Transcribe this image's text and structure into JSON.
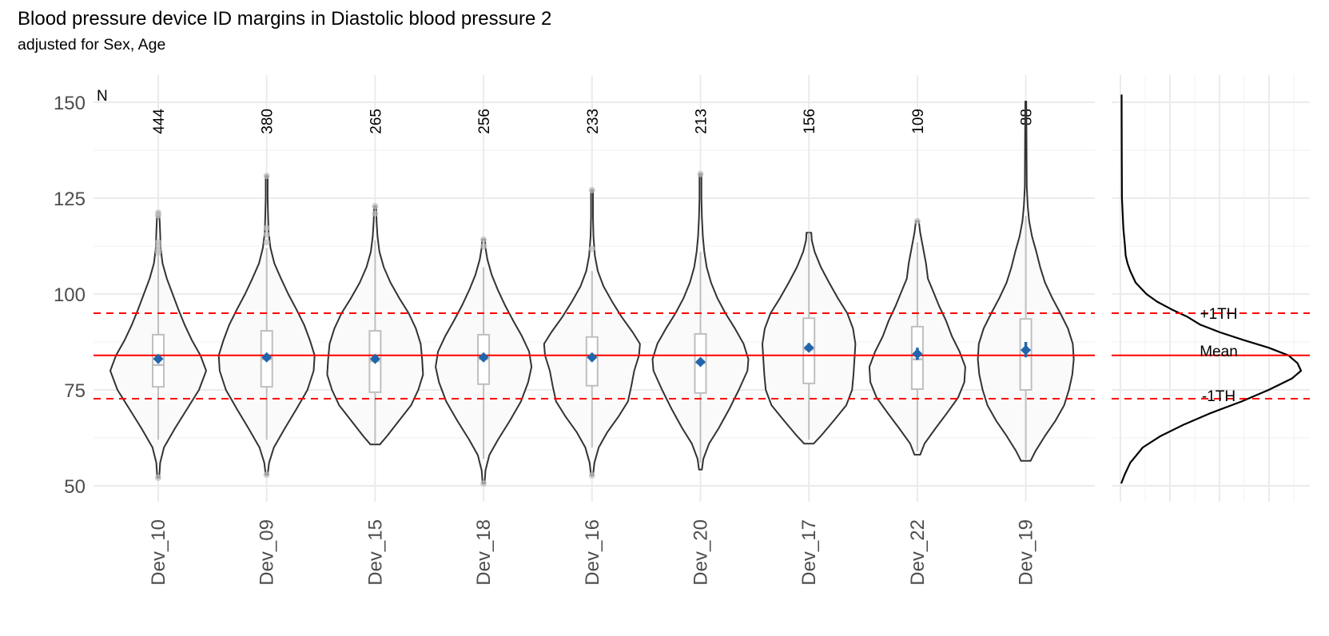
{
  "chart_data": {
    "type": "violin",
    "title": "Blood pressure device ID margins in Diastolic blood pressure 2",
    "subtitle": "adjusted for Sex, Age",
    "xlabel": "",
    "ylabel": "",
    "ylim": [
      46,
      156
    ],
    "yticks": [
      50,
      75,
      100,
      125,
      150
    ],
    "grid": true,
    "n_header": "N",
    "reference_lines": {
      "mean": {
        "label": "Mean",
        "value": 84.0,
        "color": "#ff0000",
        "style": "solid"
      },
      "plus_1th": {
        "label": "+1TH",
        "value": 95.0,
        "color": "#ff0000",
        "style": "dashed"
      },
      "minus_1th": {
        "label": "-1TH",
        "value": 72.7,
        "color": "#ff0000",
        "style": "dashed"
      }
    },
    "colors": {
      "violin_outline": "#333333",
      "violin_fill": "#fafafa",
      "box": "#bfbfbf",
      "mean_marker": "#2166ac",
      "outlier": "#bdbdbd"
    },
    "categories": [
      "Dev_10",
      "Dev_09",
      "Dev_15",
      "Dev_18",
      "Dev_16",
      "Dev_20",
      "Dev_17",
      "Dev_22",
      "Dev_19"
    ],
    "series": [
      {
        "name": "Dev_10",
        "n": "444",
        "min": 52.1,
        "max": 121.2,
        "q1": 75.8,
        "median": 81.5,
        "q3": 89.4,
        "whisker_low": 62,
        "whisker_high": 111,
        "mean": 83.1,
        "ci": [
          82.5,
          83.8
        ],
        "outliers": [
          121.2,
          120.5,
          113.5,
          112.5,
          111.5,
          110.8,
          52.1
        ],
        "profile": [
          [
            52.1,
            0.02
          ],
          [
            56,
            0.04
          ],
          [
            60,
            0.12
          ],
          [
            65,
            0.35
          ],
          [
            70,
            0.6
          ],
          [
            75,
            0.85
          ],
          [
            80,
            1.0
          ],
          [
            84,
            0.88
          ],
          [
            88,
            0.7
          ],
          [
            92,
            0.55
          ],
          [
            96,
            0.42
          ],
          [
            100,
            0.3
          ],
          [
            104,
            0.18
          ],
          [
            108,
            0.09
          ],
          [
            112,
            0.05
          ],
          [
            116,
            0.04
          ],
          [
            119,
            0.03
          ],
          [
            121.2,
            0.02
          ]
        ]
      },
      {
        "name": "Dev_09",
        "n": "380",
        "min": 52.9,
        "max": 130.8,
        "q1": 75.8,
        "median": 83.0,
        "q3": 90.4,
        "whisker_low": 62,
        "whisker_high": 112,
        "mean": 83.5,
        "ci": [
          83.0,
          84.0
        ],
        "outliers": [
          130.8,
          117.2,
          115.5,
          113.5,
          52.9
        ],
        "profile": [
          [
            52.9,
            0.02
          ],
          [
            56,
            0.05
          ],
          [
            60,
            0.15
          ],
          [
            65,
            0.38
          ],
          [
            70,
            0.62
          ],
          [
            75,
            0.85
          ],
          [
            80,
            0.98
          ],
          [
            84,
            1.0
          ],
          [
            88,
            0.9
          ],
          [
            92,
            0.78
          ],
          [
            96,
            0.62
          ],
          [
            100,
            0.45
          ],
          [
            104,
            0.3
          ],
          [
            108,
            0.16
          ],
          [
            112,
            0.08
          ],
          [
            116,
            0.04
          ],
          [
            120,
            0.03
          ],
          [
            125,
            0.02
          ],
          [
            130.8,
            0.02
          ]
        ]
      },
      {
        "name": "Dev_15",
        "n": "265",
        "min": 60.8,
        "max": 122.9,
        "q1": 74.4,
        "median": 82.5,
        "q3": 90.4,
        "whisker_low": 61,
        "whisker_high": 114,
        "mean": 83.1,
        "ci": [
          82.5,
          83.8
        ],
        "outliers": [
          122.9,
          121.0
        ],
        "profile": [
          [
            60.8,
            0.1
          ],
          [
            63,
            0.25
          ],
          [
            67,
            0.5
          ],
          [
            71,
            0.75
          ],
          [
            75,
            0.9
          ],
          [
            79,
            1.0
          ],
          [
            83,
            0.98
          ],
          [
            87,
            0.95
          ],
          [
            91,
            0.85
          ],
          [
            95,
            0.7
          ],
          [
            99,
            0.5
          ],
          [
            103,
            0.32
          ],
          [
            107,
            0.18
          ],
          [
            111,
            0.09
          ],
          [
            115,
            0.05
          ],
          [
            119,
            0.03
          ],
          [
            122.9,
            0.02
          ]
        ]
      },
      {
        "name": "Dev_18",
        "n": "256",
        "min": 50.6,
        "max": 114.2,
        "q1": 76.5,
        "median": 83.0,
        "q3": 89.4,
        "whisker_low": 57,
        "whisker_high": 107,
        "mean": 83.5,
        "ci": [
          83.0,
          84.0
        ],
        "outliers": [
          114.2,
          112.5,
          50.6
        ],
        "profile": [
          [
            50.6,
            0.02
          ],
          [
            54,
            0.04
          ],
          [
            58,
            0.12
          ],
          [
            62,
            0.3
          ],
          [
            67,
            0.55
          ],
          [
            72,
            0.78
          ],
          [
            77,
            0.93
          ],
          [
            81,
            1.0
          ],
          [
            85,
            0.95
          ],
          [
            89,
            0.8
          ],
          [
            93,
            0.62
          ],
          [
            97,
            0.45
          ],
          [
            101,
            0.3
          ],
          [
            105,
            0.17
          ],
          [
            109,
            0.08
          ],
          [
            112,
            0.04
          ],
          [
            114.2,
            0.03
          ]
        ]
      },
      {
        "name": "Dev_16",
        "n": "233",
        "min": 52.7,
        "max": 127.1,
        "q1": 76.1,
        "median": 83.5,
        "q3": 88.8,
        "whisker_low": 60,
        "whisker_high": 106,
        "mean": 83.5,
        "ci": [
          83.0,
          84.0
        ],
        "outliers": [
          127.1,
          111.8,
          52.7
        ],
        "profile": [
          [
            52.7,
            0.02
          ],
          [
            56,
            0.05
          ],
          [
            60,
            0.14
          ],
          [
            64,
            0.32
          ],
          [
            68,
            0.55
          ],
          [
            72,
            0.75
          ],
          [
            76,
            0.82
          ],
          [
            80,
            0.88
          ],
          [
            84,
            0.98
          ],
          [
            87,
            1.0
          ],
          [
            90,
            0.85
          ],
          [
            94,
            0.62
          ],
          [
            98,
            0.42
          ],
          [
            102,
            0.24
          ],
          [
            106,
            0.12
          ],
          [
            110,
            0.06
          ],
          [
            115,
            0.03
          ],
          [
            120,
            0.02
          ],
          [
            127.1,
            0.02
          ]
        ]
      },
      {
        "name": "Dev_20",
        "n": "213",
        "min": 54.2,
        "max": 131.3,
        "q1": 74.2,
        "median": 82.0,
        "q3": 89.6,
        "whisker_low": 56,
        "whisker_high": 111,
        "mean": 82.3,
        "ci": [
          81.8,
          82.8
        ],
        "outliers": [
          131.3
        ],
        "profile": [
          [
            54.2,
            0.03
          ],
          [
            57,
            0.06
          ],
          [
            61,
            0.18
          ],
          [
            65,
            0.38
          ],
          [
            70,
            0.6
          ],
          [
            75,
            0.8
          ],
          [
            80,
            0.98
          ],
          [
            83,
            1.0
          ],
          [
            87,
            0.9
          ],
          [
            91,
            0.72
          ],
          [
            95,
            0.52
          ],
          [
            99,
            0.35
          ],
          [
            103,
            0.22
          ],
          [
            107,
            0.13
          ],
          [
            111,
            0.08
          ],
          [
            115,
            0.05
          ],
          [
            120,
            0.03
          ],
          [
            125,
            0.02
          ],
          [
            131.3,
            0.02
          ]
        ]
      },
      {
        "name": "Dev_17",
        "n": "156",
        "min": 61.0,
        "max": 116.0,
        "q1": 76.7,
        "median": 85.5,
        "q3": 93.7,
        "whisker_low": 62,
        "whisker_high": 116,
        "mean": 86.0,
        "ci": [
          85.0,
          87.2
        ],
        "outliers": [],
        "profile": [
          [
            61,
            0.1
          ],
          [
            63,
            0.25
          ],
          [
            67,
            0.52
          ],
          [
            71,
            0.78
          ],
          [
            75,
            0.9
          ],
          [
            79,
            0.93
          ],
          [
            83,
            0.95
          ],
          [
            87,
            0.97
          ],
          [
            91,
            0.92
          ],
          [
            95,
            0.8
          ],
          [
            99,
            0.6
          ],
          [
            103,
            0.42
          ],
          [
            107,
            0.25
          ],
          [
            111,
            0.12
          ],
          [
            114,
            0.06
          ],
          [
            116,
            0.05
          ]
        ]
      },
      {
        "name": "Dev_22",
        "n": "109",
        "min": 58.1,
        "max": 119.0,
        "q1": 75.2,
        "median": 83.0,
        "q3": 91.5,
        "whisker_low": 59,
        "whisker_high": 113.5,
        "mean": 84.4,
        "ci": [
          82.8,
          86.0
        ],
        "outliers": [
          119.0
        ],
        "profile": [
          [
            58.1,
            0.06
          ],
          [
            61,
            0.15
          ],
          [
            65,
            0.38
          ],
          [
            69,
            0.62
          ],
          [
            73,
            0.85
          ],
          [
            77,
            0.98
          ],
          [
            81,
            1.0
          ],
          [
            85,
            0.88
          ],
          [
            89,
            0.72
          ],
          [
            93,
            0.6
          ],
          [
            97,
            0.45
          ],
          [
            101,
            0.32
          ],
          [
            104,
            0.22
          ],
          [
            108,
            0.18
          ],
          [
            112,
            0.12
          ],
          [
            116,
            0.06
          ],
          [
            119,
            0.03
          ]
        ]
      },
      {
        "name": "Dev_19",
        "n": "88",
        "min": 56.5,
        "max": 150.2,
        "q1": 75.0,
        "median": 84.0,
        "q3": 93.5,
        "whisker_low": 57,
        "whisker_high": 120.4,
        "mean": 85.4,
        "ci": [
          83.5,
          87.5
        ],
        "outliers": [],
        "profile": [
          [
            56.5,
            0.1
          ],
          [
            59,
            0.2
          ],
          [
            63,
            0.4
          ],
          [
            67,
            0.62
          ],
          [
            71,
            0.8
          ],
          [
            75,
            0.9
          ],
          [
            79,
            0.97
          ],
          [
            83,
            1.0
          ],
          [
            87,
            0.98
          ],
          [
            91,
            0.88
          ],
          [
            95,
            0.72
          ],
          [
            99,
            0.55
          ],
          [
            103,
            0.4
          ],
          [
            107,
            0.3
          ],
          [
            111,
            0.22
          ],
          [
            115,
            0.13
          ],
          [
            119,
            0.07
          ],
          [
            123,
            0.04
          ],
          [
            128,
            0.02
          ],
          [
            140,
            0.015
          ],
          [
            150.2,
            0.01
          ]
        ]
      }
    ],
    "marginal_density": {
      "description": "overall distribution density (right panel)",
      "profile": [
        [
          50.6,
          0.0
        ],
        [
          53,
          0.02
        ],
        [
          56,
          0.05
        ],
        [
          60,
          0.12
        ],
        [
          63,
          0.22
        ],
        [
          66,
          0.35
        ],
        [
          69,
          0.5
        ],
        [
          72,
          0.67
        ],
        [
          75,
          0.82
        ],
        [
          78,
          0.95
        ],
        [
          80,
          1.0
        ],
        [
          82,
          0.98
        ],
        [
          84,
          0.93
        ],
        [
          86,
          0.82
        ],
        [
          88,
          0.68
        ],
        [
          90,
          0.55
        ],
        [
          92,
          0.44
        ],
        [
          94,
          0.37
        ],
        [
          96,
          0.28
        ],
        [
          98,
          0.2
        ],
        [
          100,
          0.14
        ],
        [
          103,
          0.08
        ],
        [
          106,
          0.05
        ],
        [
          108,
          0.035
        ],
        [
          110,
          0.025
        ],
        [
          113,
          0.02
        ],
        [
          117,
          0.012
        ],
        [
          121,
          0.008
        ],
        [
          125,
          0.004
        ],
        [
          135,
          0.003
        ],
        [
          150,
          0.002
        ],
        [
          152,
          0.002
        ]
      ]
    }
  }
}
